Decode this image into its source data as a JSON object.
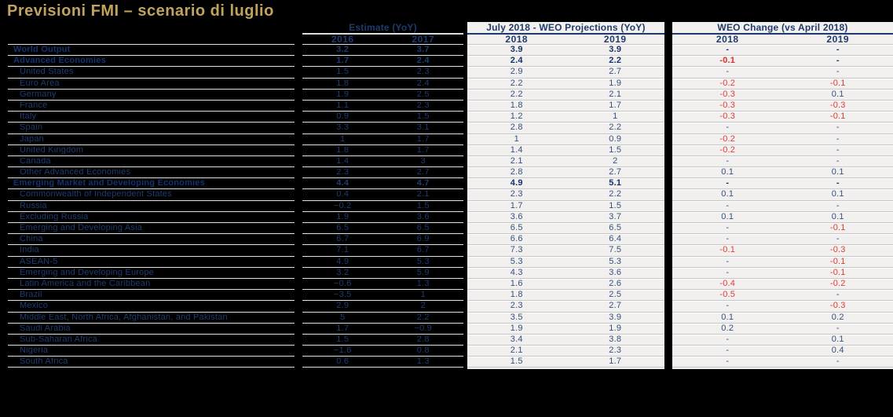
{
  "title": "Previsioni FMI – scenario di luglio",
  "colors": {
    "background": "#000000",
    "title_gold": "#c2a35e",
    "navy": "#1f3b6d",
    "negative_red": "#e23b35",
    "panel_bg": "#f1f0ee"
  },
  "table": {
    "sections": {
      "estimate": {
        "title": "Estimate (YoY)",
        "col1": "2016",
        "col2": "2017"
      },
      "projections": {
        "title": "July 2018 - WEO Projections (YoY)",
        "col1": "2018",
        "col2": "2019"
      },
      "change": {
        "title": "WEO Change (vs April 2018)",
        "col1": "2018",
        "col2": "2019"
      }
    },
    "rows": [
      {
        "label": "World Output",
        "indent": 0,
        "bold": true,
        "est2016": "3.2",
        "est2017": "3.7",
        "proj2018": "3.9",
        "proj2019": "3.9",
        "chg2018": "-",
        "chg2019": "-"
      },
      {
        "label": "Advanced Economies",
        "indent": 0,
        "bold": true,
        "est2016": "1.7",
        "est2017": "2.4",
        "proj2018": "2.4",
        "proj2019": "2.2",
        "chg2018": "-0.1",
        "chg2019": "-"
      },
      {
        "label": "United States",
        "indent": 1,
        "bold": false,
        "est2016": "1.5",
        "est2017": "2.3",
        "proj2018": "2.9",
        "proj2019": "2.7",
        "chg2018": "-",
        "chg2019": "-"
      },
      {
        "label": "Euro Area",
        "indent": 1,
        "bold": false,
        "est2016": "1.8",
        "est2017": "2.4",
        "proj2018": "2.2",
        "proj2019": "1.9",
        "chg2018": "-0.2",
        "chg2019": "-0.1"
      },
      {
        "label": "Germany",
        "indent": 1,
        "bold": false,
        "est2016": "1.9",
        "est2017": "2.5",
        "proj2018": "2.2",
        "proj2019": "2.1",
        "chg2018": "-0.3",
        "chg2019": "0.1"
      },
      {
        "label": "France",
        "indent": 1,
        "bold": false,
        "est2016": "1.1",
        "est2017": "2.3",
        "proj2018": "1.8",
        "proj2019": "1.7",
        "chg2018": "-0.3",
        "chg2019": "-0.3"
      },
      {
        "label": "Italy",
        "indent": 1,
        "bold": false,
        "est2016": "0.9",
        "est2017": "1.5",
        "proj2018": "1.2",
        "proj2019": "1",
        "chg2018": "-0.3",
        "chg2019": "-0.1"
      },
      {
        "label": "Spain",
        "indent": 1,
        "bold": false,
        "est2016": "3.3",
        "est2017": "3.1",
        "proj2018": "2.8",
        "proj2019": "2.2",
        "chg2018": "-",
        "chg2019": "-"
      },
      {
        "label": "Japan",
        "indent": 1,
        "bold": false,
        "est2016": "1",
        "est2017": "1.7",
        "proj2018": "1",
        "proj2019": "0.9",
        "chg2018": "-0.2",
        "chg2019": "-"
      },
      {
        "label": "United Kingdom",
        "indent": 1,
        "bold": false,
        "est2016": "1.8",
        "est2017": "1.7",
        "proj2018": "1.4",
        "proj2019": "1.5",
        "chg2018": "-0.2",
        "chg2019": "-"
      },
      {
        "label": "Canada",
        "indent": 1,
        "bold": false,
        "est2016": "1.4",
        "est2017": "3",
        "proj2018": "2.1",
        "proj2019": "2",
        "chg2018": "-",
        "chg2019": "-"
      },
      {
        "label": "Other Advanced Economies",
        "indent": 1,
        "bold": false,
        "est2016": "2.3",
        "est2017": "2.7",
        "proj2018": "2.8",
        "proj2019": "2.7",
        "chg2018": "0.1",
        "chg2019": "0.1"
      },
      {
        "label": "Emerging Market and Developing Economies",
        "indent": 0,
        "bold": true,
        "est2016": "4.4",
        "est2017": "4.7",
        "proj2018": "4.9",
        "proj2019": "5.1",
        "chg2018": "-",
        "chg2019": "-"
      },
      {
        "label": "Commonwealth of Independent States",
        "indent": 1,
        "bold": false,
        "est2016": "0.4",
        "est2017": "2.1",
        "proj2018": "2.3",
        "proj2019": "2.2",
        "chg2018": "0.1",
        "chg2019": "0.1"
      },
      {
        "label": "Russia",
        "indent": 1,
        "bold": false,
        "est2016": "−0.2",
        "est2017": "1.5",
        "proj2018": "1.7",
        "proj2019": "1.5",
        "chg2018": "-",
        "chg2019": "-"
      },
      {
        "label": "Excluding Russia",
        "indent": 1,
        "bold": false,
        "est2016": "1.9",
        "est2017": "3.6",
        "proj2018": "3.6",
        "proj2019": "3.7",
        "chg2018": "0.1",
        "chg2019": "0.1"
      },
      {
        "label": "Emerging and Developing Asia",
        "indent": 1,
        "bold": false,
        "est2016": "6.5",
        "est2017": "6.5",
        "proj2018": "6.5",
        "proj2019": "6.5",
        "chg2018": "-",
        "chg2019": "-0.1"
      },
      {
        "label": "China",
        "indent": 1,
        "bold": false,
        "est2016": "6.7",
        "est2017": "6.9",
        "proj2018": "6.6",
        "proj2019": "6.4",
        "chg2018": "-",
        "chg2019": "-"
      },
      {
        "label": "India",
        "indent": 1,
        "bold": false,
        "est2016": "7.1",
        "est2017": "6.7",
        "proj2018": "7.3",
        "proj2019": "7.5",
        "chg2018": "-0.1",
        "chg2019": "-0.3"
      },
      {
        "label": "ASEAN-5",
        "indent": 1,
        "bold": false,
        "est2016": "4.9",
        "est2017": "5.3",
        "proj2018": "5.3",
        "proj2019": "5.3",
        "chg2018": "-",
        "chg2019": "-0.1"
      },
      {
        "label": "Emerging and Developing Europe",
        "indent": 1,
        "bold": false,
        "est2016": "3.2",
        "est2017": "5.9",
        "proj2018": "4.3",
        "proj2019": "3.6",
        "chg2018": "-",
        "chg2019": "-0.1"
      },
      {
        "label": "Latin America and the Caribbean",
        "indent": 1,
        "bold": false,
        "est2016": "−0.6",
        "est2017": "1.3",
        "proj2018": "1.6",
        "proj2019": "2.6",
        "chg2018": "-0.4",
        "chg2019": "-0.2"
      },
      {
        "label": "Brazil",
        "indent": 1,
        "bold": false,
        "est2016": "−3.5",
        "est2017": "1",
        "proj2018": "1.8",
        "proj2019": "2.5",
        "chg2018": "-0.5",
        "chg2019": "-"
      },
      {
        "label": "Mexico",
        "indent": 1,
        "bold": false,
        "est2016": "2.9",
        "est2017": "2",
        "proj2018": "2.3",
        "proj2019": "2.7",
        "chg2018": "-",
        "chg2019": "-0.3"
      },
      {
        "label": "Middle East, North Africa, Afghanistan, and Pakistan",
        "indent": 1,
        "bold": false,
        "est2016": "5",
        "est2017": "2.2",
        "proj2018": "3.5",
        "proj2019": "3.9",
        "chg2018": "0.1",
        "chg2019": "0.2"
      },
      {
        "label": "Saudi Arabia",
        "indent": 1,
        "bold": false,
        "est2016": "1.7",
        "est2017": "−0.9",
        "proj2018": "1.9",
        "proj2019": "1.9",
        "chg2018": "0.2",
        "chg2019": "-"
      },
      {
        "label": "Sub-Saharan Africa",
        "indent": 1,
        "bold": false,
        "est2016": "1.5",
        "est2017": "2.8",
        "proj2018": "3.4",
        "proj2019": "3.8",
        "chg2018": "-",
        "chg2019": "0.1"
      },
      {
        "label": "Nigeria",
        "indent": 1,
        "bold": false,
        "est2016": "−1.6",
        "est2017": "0.8",
        "proj2018": "2.1",
        "proj2019": "2.3",
        "chg2018": "-",
        "chg2019": "0.4"
      },
      {
        "label": "South Africa",
        "indent": 1,
        "bold": false,
        "est2016": "0.6",
        "est2017": "1.3",
        "proj2018": "1.5",
        "proj2019": "1.7",
        "chg2018": "-",
        "chg2019": "-"
      }
    ]
  }
}
